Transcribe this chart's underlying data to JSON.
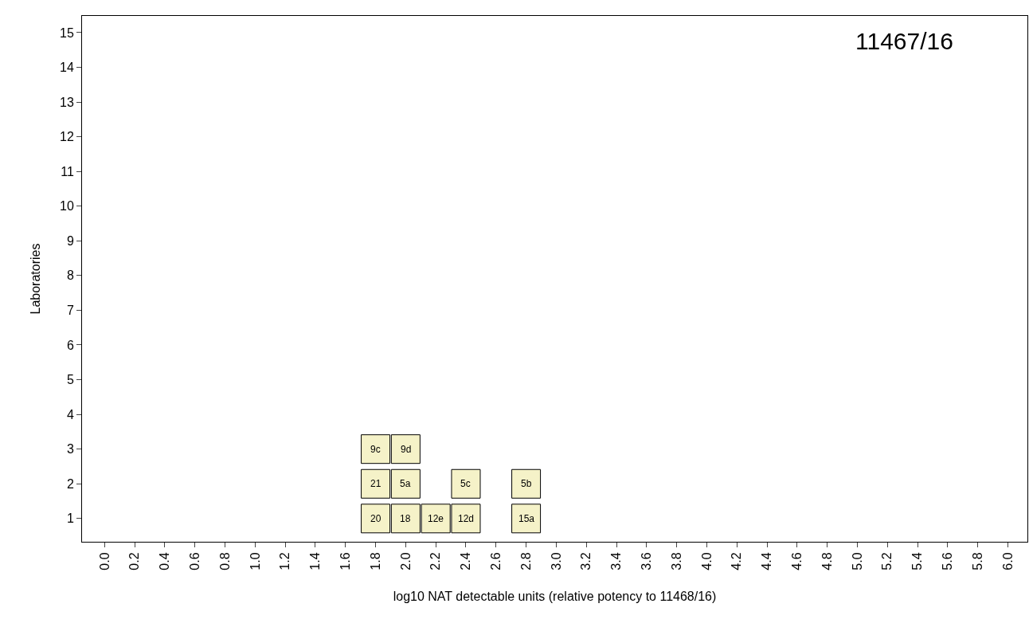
{
  "chart_data": {
    "type": "scatter",
    "xlabel": "log10 NAT detectable units (relative potency to 11468/16)",
    "ylabel": "Laboratories",
    "annotations": [
      "11467/16",
      {
        "text": "20",
        "x": 1.8,
        "y": 1
      },
      {
        "text": "21",
        "x": 1.8,
        "y": 2
      },
      {
        "text": "9c",
        "x": 1.8,
        "y": 3
      },
      {
        "text": "18",
        "x": 2.0,
        "y": 1
      },
      {
        "text": "5a",
        "x": 2.0,
        "y": 2
      },
      {
        "text": "9d",
        "x": 2.0,
        "y": 3
      },
      {
        "text": "12e",
        "x": 2.2,
        "y": 1
      },
      {
        "text": "12d",
        "x": 2.4,
        "y": 1
      },
      {
        "text": "5c",
        "x": 2.4,
        "y": 2
      },
      {
        "text": "15a",
        "x": 2.8,
        "y": 1
      },
      {
        "text": "5b",
        "x": 2.8,
        "y": 2
      }
    ],
    "series": [
      {
        "color": "#f5f2c8",
        "x": [
          1.8,
          1.8,
          1.8,
          2.0,
          2.0,
          2.0,
          2.2,
          2.4,
          2.4,
          2.8,
          2.8
        ],
        "values": [
          1,
          2,
          3,
          1,
          2,
          3,
          1,
          1,
          2,
          1,
          2
        ]
      }
    ],
    "marker": "square",
    "grid": false,
    "xlim": [
      -0.15,
      6.13
    ],
    "xticks": [
      {
        "value": 0,
        "label": "0.0"
      },
      0.2,
      0.4,
      0.6,
      0.8,
      {
        "value": 1,
        "label": "1.0"
      },
      1.2,
      1.4,
      1.6,
      1.8,
      {
        "value": 2,
        "label": "2.0"
      },
      2.2,
      2.4,
      2.6,
      2.8,
      {
        "value": 3,
        "label": "3.0"
      },
      3.2,
      3.4,
      3.6,
      3.8,
      {
        "value": 4,
        "label": "4.0"
      },
      4.2,
      4.4,
      4.6,
      4.8,
      {
        "value": 5,
        "label": "5.0"
      },
      5.2,
      5.4,
      5.6,
      5.8,
      {
        "value": 6,
        "label": "6.0"
      }
    ],
    "ylim": [
      0.33,
      15.48
    ],
    "yticks": [
      1,
      2,
      3,
      4,
      5,
      6,
      7,
      8,
      9,
      10,
      11,
      12,
      13,
      14,
      15
    ]
  }
}
